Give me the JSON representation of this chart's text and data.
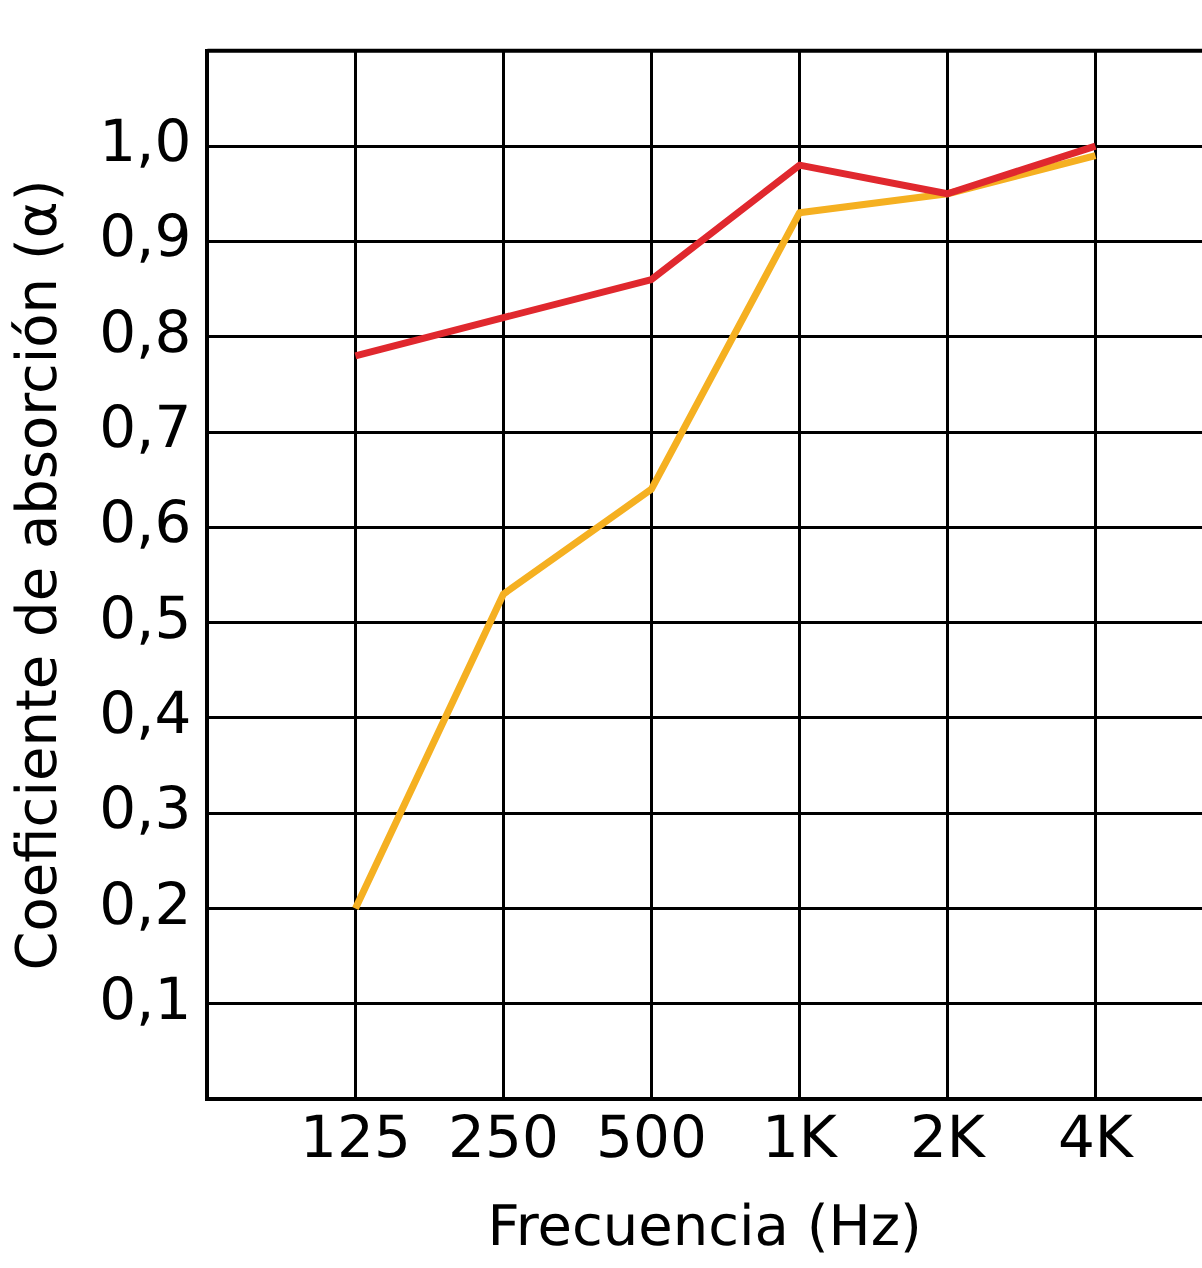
{
  "chart_data": {
    "type": "line",
    "xlabel": "Frecuencia (Hz)",
    "ylabel": "Coeficiente de absorción (α)",
    "categories": [
      "125",
      "250",
      "500",
      "1K",
      "2K",
      "4K"
    ],
    "series": [
      {
        "color": "#e0282e",
        "values": [
          0.78,
          0.82,
          0.86,
          0.98,
          0.95,
          1.0
        ]
      },
      {
        "color": "#f5b021",
        "values": [
          0.2,
          0.53,
          0.64,
          0.93,
          0.95,
          0.99
        ]
      }
    ],
    "ylim": [
      0,
      1.1
    ],
    "yticks": [
      {
        "value": 0.1,
        "label": "0,1"
      },
      {
        "value": 0.2,
        "label": "0,2"
      },
      {
        "value": 0.3,
        "label": "0,3"
      },
      {
        "value": 0.4,
        "label": "0,4"
      },
      {
        "value": 0.5,
        "label": "0,5"
      },
      {
        "value": 0.6,
        "label": "0,6"
      },
      {
        "value": 0.7,
        "label": "0,7"
      },
      {
        "value": 0.8,
        "label": "0,8"
      },
      {
        "value": 0.9,
        "label": "0,9"
      },
      {
        "value": 1.0,
        "label": "1,0"
      }
    ],
    "grid": true,
    "legend": false,
    "marker": "none",
    "line_style": "solid"
  }
}
